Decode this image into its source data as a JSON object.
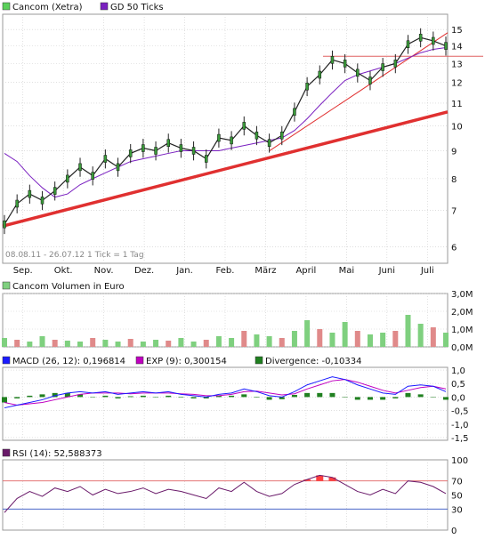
{
  "colors": {
    "price_up": "#222222",
    "price_down": "#222222",
    "trendline": "#e03030",
    "ma_line": "#7a20c0",
    "volume_up": "#7fd07f",
    "volume_down": "#e08a8a",
    "macd": "#1a1aff",
    "exp": "#c000c0",
    "divergence": "#208020",
    "rsi": "#6a1a6a",
    "rsi_overbought_fill": "#ff4040",
    "grid": "#cccccc",
    "level_line": "#e06060",
    "level_line_blue": "#3050c0"
  },
  "panels": {
    "price": {
      "legend": [
        {
          "label": "Cancom (Xetra)",
          "color": "#5ad05a"
        },
        {
          "label": "GD 50 Ticks",
          "color": "#7a20c0"
        }
      ],
      "info": "08.08.11 - 26.07.12   1 Tick = 1 Tag"
    },
    "volume": {
      "legend": [
        {
          "label": "Cancom Volumen in Euro",
          "color": "#7fd07f"
        }
      ]
    },
    "macd": {
      "legend": [
        {
          "label": "MACD (26, 12): 0,196814",
          "color": "#1a1aff"
        },
        {
          "label": "EXP (9): 0,300154",
          "color": "#c000c0"
        },
        {
          "label": "Divergence: -0,10334",
          "color": "#208020"
        }
      ]
    },
    "rsi": {
      "legend": [
        {
          "label": "RSI (14): 52,588373",
          "color": "#6a1a6a"
        }
      ]
    }
  },
  "chart_data": [
    {
      "type": "line",
      "name": "price",
      "x_labels": [
        "Sep.",
        "Okt.",
        "Nov.",
        "Dez.",
        "Jan.",
        "Feb.",
        "März",
        "April",
        "Mai",
        "Juni",
        "Juli"
      ],
      "y_ticks": [
        6,
        7,
        8,
        9,
        10,
        11,
        12,
        13,
        14,
        15
      ],
      "y_scale": "log",
      "ylim": [
        5.6,
        16
      ],
      "close_series": [
        6.6,
        7.2,
        7.5,
        7.3,
        7.6,
        8.0,
        8.4,
        8.1,
        8.7,
        8.4,
        8.9,
        9.1,
        9.0,
        9.3,
        9.1,
        9.0,
        8.7,
        9.5,
        9.4,
        10.0,
        9.6,
        9.3,
        9.6,
        10.6,
        11.8,
        12.4,
        13.2,
        13.0,
        12.5,
        12.1,
        12.8,
        13.0,
        14.1,
        14.5,
        14.3,
        14.0
      ],
      "ma_series": [
        8.9,
        8.6,
        8.1,
        7.7,
        7.4,
        7.5,
        7.8,
        8.0,
        8.2,
        8.4,
        8.6,
        8.7,
        8.8,
        8.9,
        9.0,
        9.0,
        9.0,
        9.0,
        9.1,
        9.2,
        9.3,
        9.4,
        9.5,
        9.8,
        10.3,
        10.9,
        11.5,
        12.1,
        12.4,
        12.6,
        12.8,
        13.0,
        13.3,
        13.6,
        13.8,
        13.9
      ],
      "trendlines": [
        {
          "from": [
            0,
            6.55
          ],
          "to": [
            1,
            10.6
          ]
        },
        {
          "from": [
            0.6,
            9.0
          ],
          "to": [
            1,
            14.8
          ]
        }
      ],
      "level_line": 13.4
    },
    {
      "type": "bar",
      "name": "volume",
      "y_ticks_labels": [
        "0,0M",
        "1,0M",
        "2,0M",
        "3,0M"
      ],
      "ylim": [
        0,
        3.0
      ],
      "values": [
        0.5,
        0.4,
        0.3,
        0.6,
        0.4,
        0.35,
        0.3,
        0.5,
        0.4,
        0.3,
        0.45,
        0.3,
        0.4,
        0.35,
        0.5,
        0.3,
        0.4,
        0.6,
        0.5,
        0.9,
        0.7,
        0.6,
        0.5,
        0.9,
        1.5,
        1.0,
        0.8,
        1.4,
        0.9,
        0.7,
        0.8,
        0.9,
        1.8,
        1.3,
        1.1,
        0.8
      ]
    },
    {
      "type": "line",
      "name": "macd",
      "y_ticks_labels": [
        "-1,5",
        "-1,0",
        "-0,5",
        "0,0",
        "0,5",
        "1,0"
      ],
      "y_ticks": [
        -1.5,
        -1.0,
        -0.5,
        0.0,
        0.5,
        1.0
      ],
      "ylim": [
        -1.6,
        1.1
      ],
      "macd": [
        -0.4,
        -0.3,
        -0.2,
        -0.1,
        0.05,
        0.15,
        0.2,
        0.15,
        0.2,
        0.1,
        0.15,
        0.2,
        0.15,
        0.2,
        0.1,
        0.05,
        0.0,
        0.1,
        0.15,
        0.3,
        0.2,
        0.05,
        0.0,
        0.2,
        0.45,
        0.6,
        0.75,
        0.65,
        0.45,
        0.3,
        0.15,
        0.1,
        0.4,
        0.45,
        0.4,
        0.2
      ],
      "exp": [
        -0.2,
        -0.3,
        -0.25,
        -0.2,
        -0.1,
        0.0,
        0.1,
        0.15,
        0.15,
        0.15,
        0.12,
        0.15,
        0.15,
        0.15,
        0.12,
        0.1,
        0.05,
        0.05,
        0.1,
        0.2,
        0.22,
        0.15,
        0.08,
        0.12,
        0.3,
        0.45,
        0.6,
        0.65,
        0.55,
        0.4,
        0.25,
        0.15,
        0.25,
        0.35,
        0.4,
        0.3
      ],
      "divergence": [
        -0.2,
        -0.05,
        0.05,
        0.1,
        0.15,
        0.15,
        0.1,
        0.0,
        0.05,
        -0.05,
        0.03,
        0.05,
        0.0,
        0.05,
        -0.02,
        -0.05,
        -0.05,
        0.05,
        0.05,
        0.1,
        -0.02,
        -0.1,
        -0.08,
        0.08,
        0.15,
        0.15,
        0.15,
        0.0,
        -0.1,
        -0.1,
        -0.1,
        -0.05,
        0.15,
        0.1,
        0.0,
        -0.1
      ]
    },
    {
      "type": "line",
      "name": "rsi",
      "y_ticks": [
        0,
        30,
        50,
        70,
        100
      ],
      "ylim": [
        0,
        100
      ],
      "levels": [
        30,
        70
      ],
      "values": [
        25,
        45,
        55,
        48,
        60,
        55,
        62,
        50,
        58,
        52,
        55,
        60,
        52,
        58,
        55,
        50,
        45,
        60,
        55,
        68,
        55,
        48,
        52,
        65,
        72,
        78,
        75,
        65,
        55,
        50,
        58,
        52,
        70,
        68,
        62,
        52
      ]
    }
  ]
}
